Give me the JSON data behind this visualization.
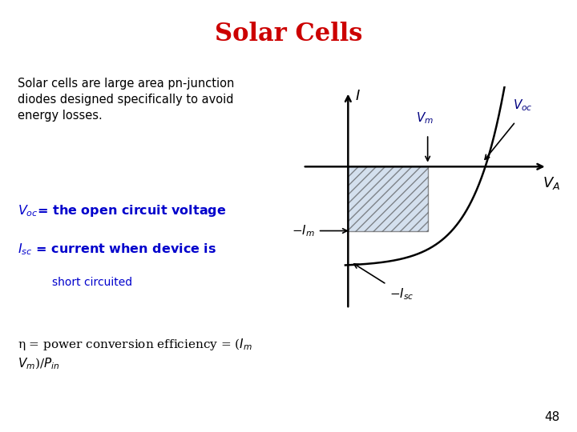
{
  "title": "Solar Cells",
  "title_color": "#cc0000",
  "title_fontsize": 22,
  "bg_color": "#ffffff",
  "body_text_1": "Solar cells are large area pn-junction\ndiodes designed specifically to avoid\nenergy losses.",
  "body_text_2_line1": "$V_{oc}$= the open circuit voltage",
  "body_text_2_line2": "$I_{sc}$ = current when device is",
  "body_text_2_line3": "short circuited",
  "body_text_3": "η = power conversion efficiency = ($I_m$\n$V_m$)/$P_{in}$",
  "page_number": "48",
  "diagram": {
    "x_axis_label": "$V_A$",
    "y_axis_label": "$I$",
    "Vm_label": "$V_m$",
    "Voc_label": "$V_{oc}$",
    "Im_label": "$-I_m$",
    "Isc_label": "$-I_{sc}$",
    "curve_color": "#000000",
    "axis_color": "#000000",
    "label_color": "#000080"
  }
}
